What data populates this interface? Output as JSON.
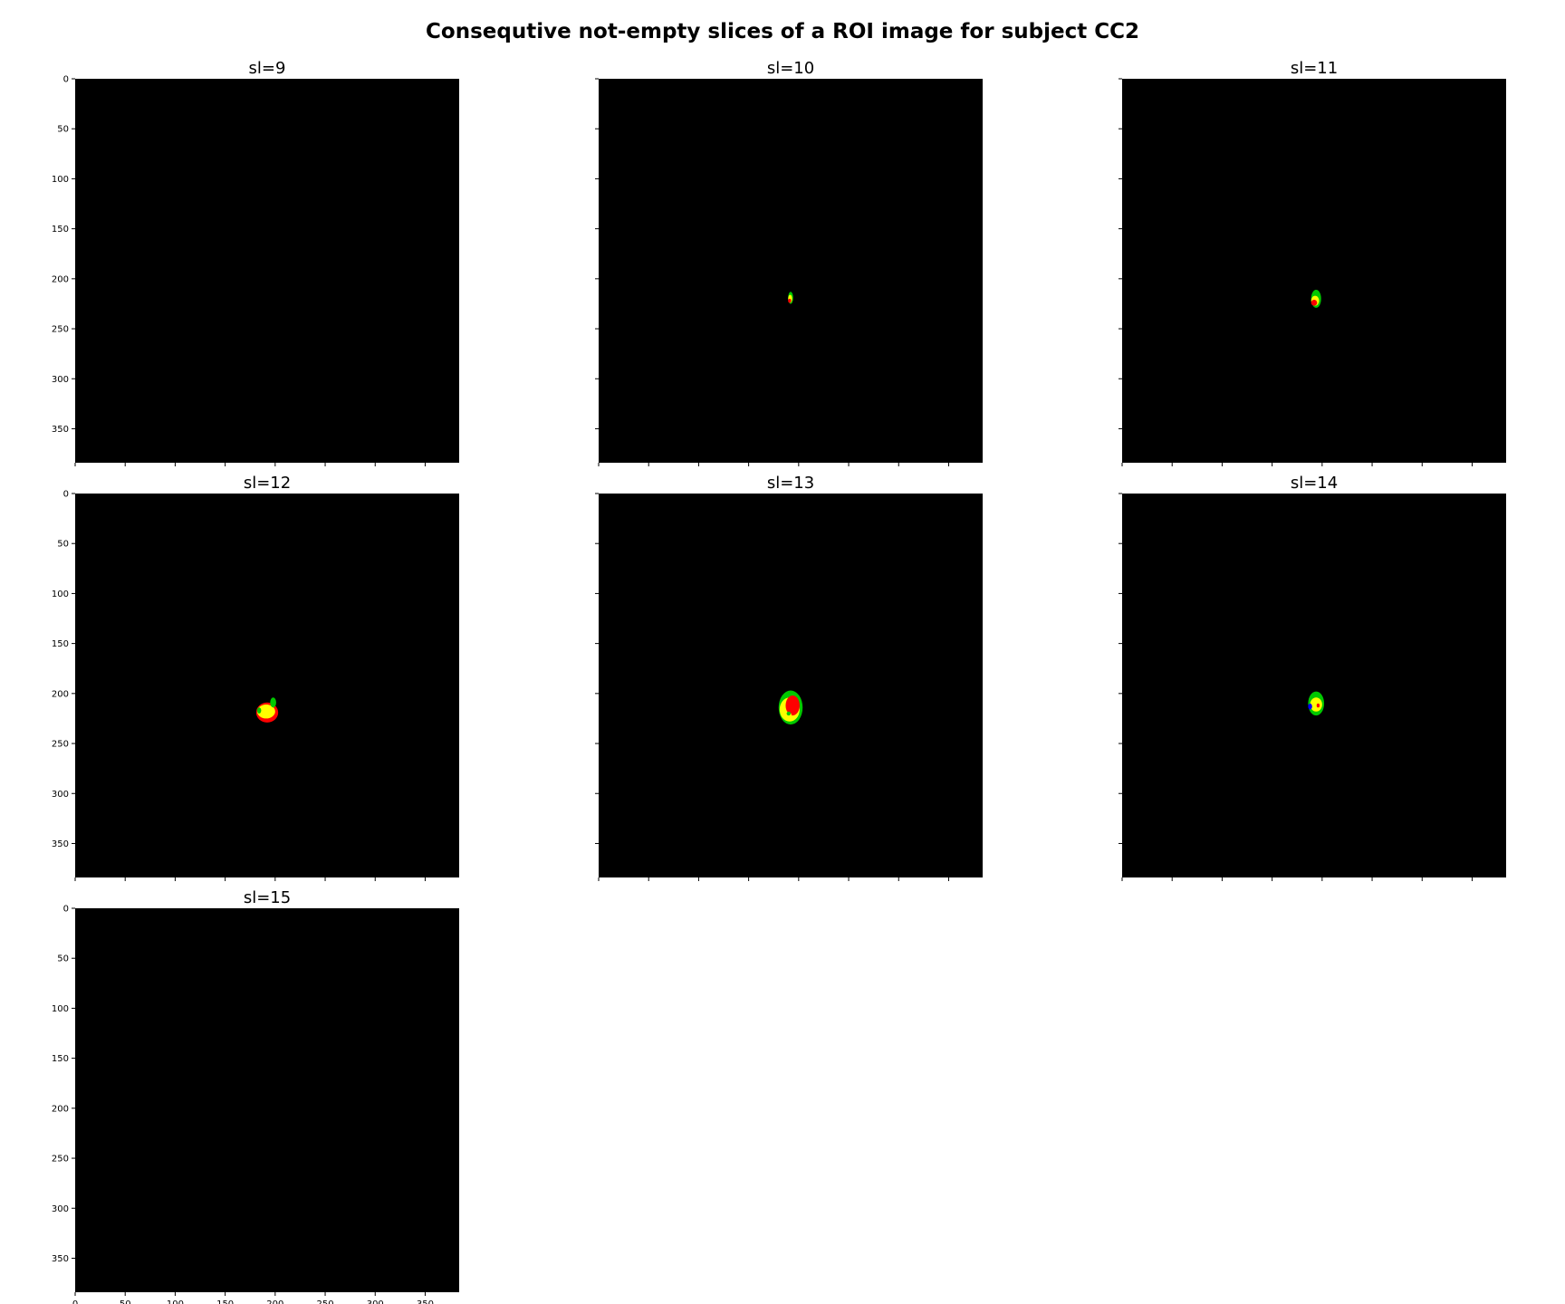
{
  "chart_data": {
    "type": "heatmap",
    "title": "Consequtive not-empty slices of a ROI image for subject CC2",
    "layout": {
      "rows": 3,
      "cols": 3
    },
    "colors": {
      "background": "#000000",
      "outer": "#00c800",
      "mid": "#ffff00",
      "core": "#ff0000",
      "edge": "#0000ff"
    },
    "axis": {
      "xlim": [
        0,
        384
      ],
      "ylim": [
        384,
        0
      ],
      "xticks": [
        0,
        50,
        100,
        150,
        200,
        250,
        300,
        350
      ],
      "yticks": [
        0,
        50,
        100,
        150,
        200,
        250,
        300,
        350
      ]
    },
    "panels": [
      {
        "title": "sl=9",
        "roi": []
      },
      {
        "title": "sl=10",
        "roi": [
          {
            "color": "outer",
            "cx": 192,
            "cy": 219,
            "rx": 2.5,
            "ry": 6
          },
          {
            "color": "mid",
            "cx": 191.5,
            "cy": 220,
            "rx": 2,
            "ry": 4
          },
          {
            "color": "core",
            "cx": 191,
            "cy": 222,
            "rx": 1.5,
            "ry": 2
          }
        ]
      },
      {
        "title": "sl=11",
        "roi": [
          {
            "color": "outer",
            "cx": 194,
            "cy": 220,
            "rx": 5,
            "ry": 9
          },
          {
            "color": "mid",
            "cx": 193,
            "cy": 222,
            "rx": 4,
            "ry": 5
          },
          {
            "color": "core",
            "cx": 192,
            "cy": 224,
            "rx": 3,
            "ry": 3
          }
        ]
      },
      {
        "title": "sl=12",
        "roi": [
          {
            "color": "core",
            "cx": 192,
            "cy": 219,
            "rx": 11,
            "ry": 10
          },
          {
            "color": "mid",
            "cx": 191,
            "cy": 218,
            "rx": 9,
            "ry": 7
          },
          {
            "color": "outer",
            "cx": 198,
            "cy": 209,
            "rx": 3,
            "ry": 5
          },
          {
            "color": "outer",
            "cx": 184,
            "cy": 217,
            "rx": 2,
            "ry": 3
          }
        ]
      },
      {
        "title": "sl=13",
        "roi": [
          {
            "color": "outer",
            "cx": 192,
            "cy": 214,
            "rx": 12,
            "ry": 17
          },
          {
            "color": "mid",
            "cx": 191,
            "cy": 216,
            "rx": 10,
            "ry": 12
          },
          {
            "color": "core",
            "cx": 194,
            "cy": 212,
            "rx": 7,
            "ry": 10
          },
          {
            "color": "mid",
            "cx": 188,
            "cy": 222,
            "rx": 5,
            "ry": 4
          },
          {
            "color": "outer",
            "cx": 190,
            "cy": 220,
            "rx": 2,
            "ry": 2
          }
        ]
      },
      {
        "title": "sl=14",
        "roi": [
          {
            "color": "outer",
            "cx": 194,
            "cy": 210,
            "rx": 8,
            "ry": 12
          },
          {
            "color": "mid",
            "cx": 194,
            "cy": 211,
            "rx": 6,
            "ry": 7
          },
          {
            "color": "edge",
            "cx": 188,
            "cy": 213,
            "rx": 2,
            "ry": 3
          },
          {
            "color": "core",
            "cx": 196,
            "cy": 212,
            "rx": 1.5,
            "ry": 2
          }
        ]
      },
      {
        "title": "sl=15",
        "roi": []
      }
    ]
  }
}
